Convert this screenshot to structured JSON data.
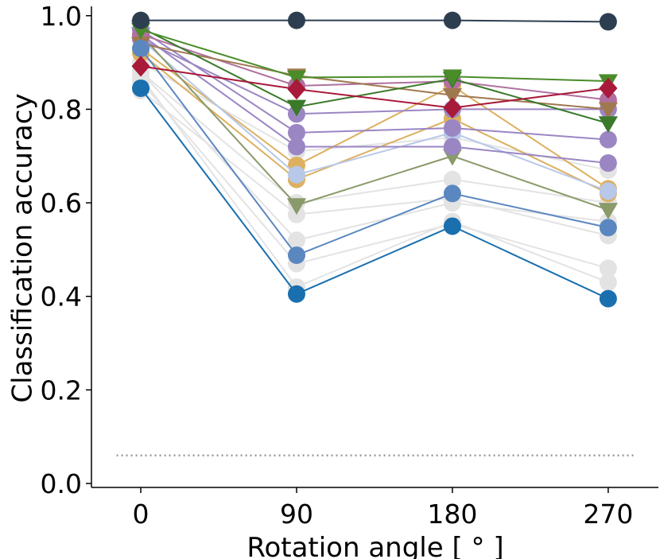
{
  "chart_data": {
    "type": "line",
    "xlabel": "Rotation angle [ ° ]",
    "ylabel": "Classification accuracy",
    "x": [
      0,
      90,
      180,
      270
    ],
    "xlim": [
      -28.5,
      299
    ],
    "ylim": [
      -0.0085,
      1.02
    ],
    "xticks": [
      0,
      90,
      180,
      270
    ],
    "yticks": [
      {
        "value": 0,
        "label": "0.0"
      },
      0.2,
      0.4,
      0.6,
      0.8,
      {
        "value": 1,
        "label": "1.0"
      }
    ],
    "reference_line": {
      "value": 0.06,
      "x": [
        -14,
        285
      ],
      "color": "#999999",
      "style": "dotted"
    },
    "series": [
      {
        "color": "#e3e3e3",
        "marker": "circle",
        "values": [
          0.84,
          0.575,
          0.61,
          0.53
        ]
      },
      {
        "color": "#e3e3e3",
        "marker": "circle",
        "values": [
          0.86,
          0.47,
          0.555,
          0.46
        ]
      },
      {
        "color": "#e3e3e3",
        "marker": "circle",
        "values": [
          0.87,
          0.42,
          0.56,
          0.43
        ]
      },
      {
        "color": "#e3e3e3",
        "marker": "circle",
        "values": [
          0.88,
          0.6,
          0.65,
          0.6
        ]
      },
      {
        "color": "#e3e3e3",
        "marker": "circle",
        "values": [
          0.9,
          0.71,
          0.74,
          0.67
        ]
      },
      {
        "color": "#e3e3e3",
        "marker": "circle",
        "values": [
          0.88,
          0.52,
          0.6,
          0.56
        ]
      },
      {
        "color": "#dcb060",
        "marker": "circle",
        "values": [
          0.93,
          0.68,
          0.85,
          0.63
        ]
      },
      {
        "color": "#dcb060",
        "marker": "circle",
        "values": [
          0.92,
          0.65,
          0.78,
          0.62
        ]
      },
      {
        "color": "#b8c8e8",
        "marker": "circle",
        "values": [
          0.95,
          0.66,
          0.75,
          0.625
        ]
      },
      {
        "color": "#8a9a6a",
        "marker": "triangle-down",
        "values": [
          0.96,
          0.595,
          0.7,
          0.585
        ]
      },
      {
        "color": "#9b86c4",
        "marker": "circle",
        "values": [
          0.97,
          0.75,
          0.76,
          0.735
        ]
      },
      {
        "color": "#9b86c4",
        "marker": "circle",
        "values": [
          0.96,
          0.72,
          0.72,
          0.685
        ]
      },
      {
        "color": "#9b86c4",
        "marker": "circle",
        "values": [
          0.95,
          0.79,
          0.8,
          0.8
        ]
      },
      {
        "color": "#b070a0",
        "marker": "circle",
        "values": [
          0.96,
          0.85,
          0.86,
          0.82
        ]
      },
      {
        "color": "#a07850",
        "marker": "triangle-down",
        "values": [
          0.94,
          0.872,
          0.83,
          0.8
        ]
      },
      {
        "color": "#3a7a2a",
        "marker": "triangle-down",
        "values": [
          0.975,
          0.805,
          0.865,
          0.77
        ]
      },
      {
        "color": "#4a8c2a",
        "marker": "triangle-down",
        "values": [
          0.97,
          0.868,
          0.87,
          0.86
        ]
      },
      {
        "color": "#5b87c0",
        "marker": "circle",
        "values": [
          0.93,
          0.488,
          0.62,
          0.547
        ]
      },
      {
        "color": "#1a6faf",
        "marker": "circle",
        "values": [
          0.845,
          0.405,
          0.55,
          0.395
        ]
      },
      {
        "color": "#a8193a",
        "marker": "diamond",
        "values": [
          0.892,
          0.843,
          0.803,
          0.845
        ]
      },
      {
        "color": "#2d3e50",
        "marker": "circle",
        "values": [
          0.99,
          0.99,
          0.99,
          0.987
        ]
      }
    ]
  }
}
